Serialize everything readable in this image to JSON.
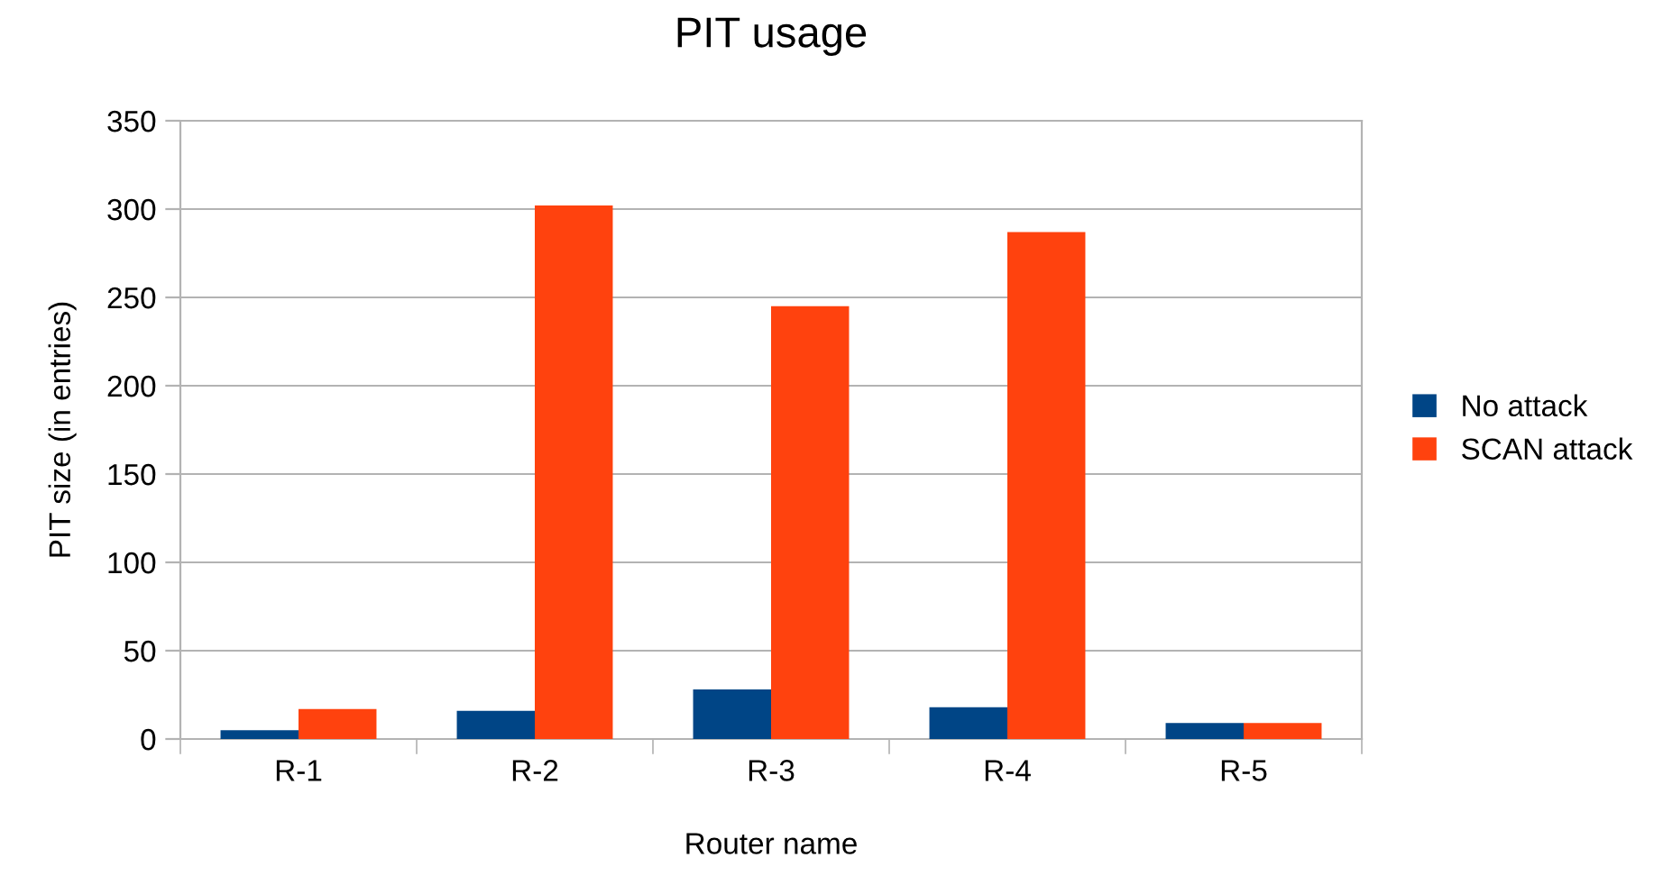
{
  "chart_data": {
    "type": "bar",
    "title": "PIT usage",
    "xlabel": "Router name",
    "ylabel": "PIT size (in entries)",
    "categories": [
      "R-1",
      "R-2",
      "R-3",
      "R-4",
      "R-5"
    ],
    "series": [
      {
        "name": "No attack",
        "color": "#004586",
        "values": [
          5,
          16,
          28,
          18,
          9
        ]
      },
      {
        "name": "SCAN attack",
        "color": "#ff420e",
        "values": [
          17,
          302,
          245,
          287,
          9
        ]
      }
    ],
    "ylim": [
      0,
      350
    ],
    "yticks": [
      0,
      50,
      100,
      150,
      200,
      250,
      300,
      350
    ],
    "grid": "y",
    "legend": "right"
  }
}
